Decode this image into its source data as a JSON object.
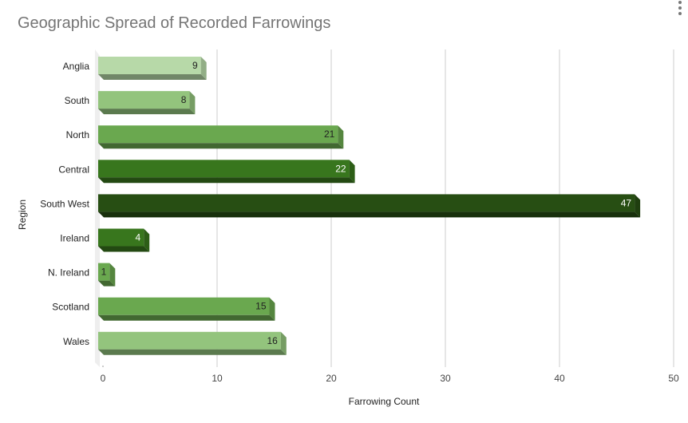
{
  "chart_data": {
    "type": "bar",
    "orientation": "horizontal",
    "style": "3d",
    "title": "Geographic Spread of Recorded Farrowings",
    "xlabel": "Farrowing Count",
    "ylabel": "Region",
    "xlim": [
      0,
      50
    ],
    "xticks": [
      "0",
      "10",
      "20",
      "30",
      "40",
      "50"
    ],
    "grid": true,
    "legend": "none",
    "categories": [
      "Anglia",
      "South",
      "North",
      "Central",
      "South West",
      "Ireland",
      "N. Ireland",
      "Scotland",
      "Wales"
    ],
    "values": [
      9,
      8,
      21,
      22,
      47,
      4,
      1,
      15,
      16
    ],
    "data_labels": [
      "9",
      "8",
      "21",
      "22",
      "47",
      "4",
      "1",
      "15",
      "16"
    ],
    "colors": [
      "#b7d9a8",
      "#93c47d",
      "#6aa84f",
      "#38761d",
      "#274e13",
      "#38761d",
      "#6aa84f",
      "#6aa84f",
      "#93c47d"
    ],
    "label_colors": [
      "#222222",
      "#222222",
      "#222222",
      "#ffffff",
      "#ffffff",
      "#ffffff",
      "#222222",
      "#222222",
      "#222222"
    ]
  }
}
